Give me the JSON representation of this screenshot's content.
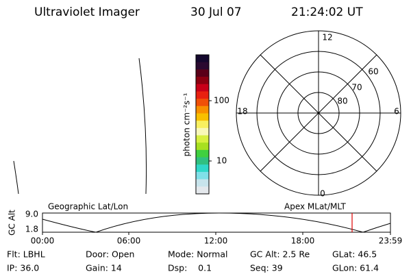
{
  "header": {
    "title": "Ultraviolet Imager",
    "date": "30 Jul 07",
    "time": "21:24:02 UT"
  },
  "colorbar": {
    "label": "photon cm⁻²s⁻¹",
    "ticks": [
      "100",
      "10"
    ]
  },
  "polar": {
    "mlt_labels": [
      "12",
      "18",
      "6",
      "0"
    ],
    "lat_labels": [
      "60",
      "70",
      "80"
    ]
  },
  "altitude_plot": {
    "ylabel": "GC Alt",
    "yticks": [
      "9.0",
      "1.8"
    ],
    "left_title": "Geographic Lat/Lon",
    "right_title": "Apex MLat/MLT",
    "xticks": [
      "00:00",
      "06:00",
      "12:00",
      "18:00",
      "23:59"
    ]
  },
  "status": {
    "rows": [
      [
        "Flt: LBHL",
        "Door: Open",
        "Mode: Normal",
        "GC Alt: 2.5 Re",
        "GLat: 46.5"
      ],
      [
        "IP: 36.0",
        "Gain: 14",
        "Dsp:    0.1",
        "Seq: 39",
        "GLon: 61.4"
      ]
    ]
  }
}
